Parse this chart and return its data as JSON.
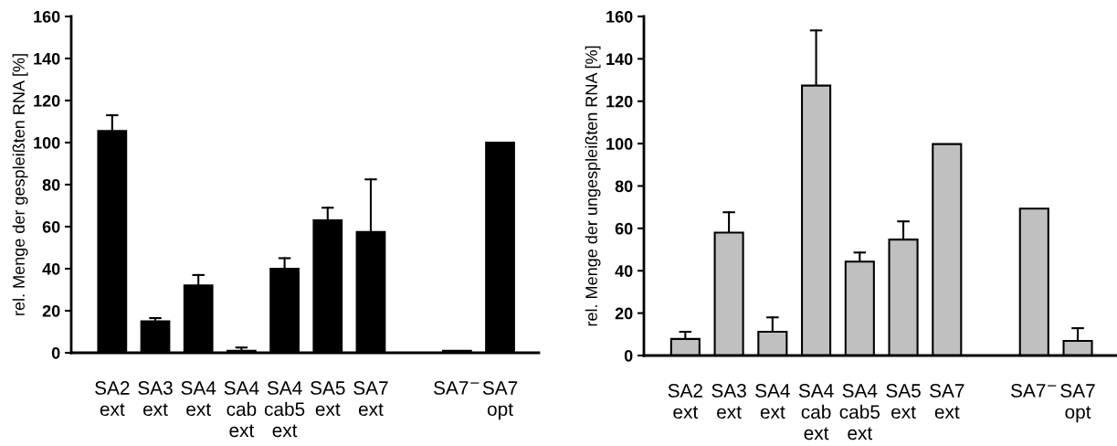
{
  "chart_data": [
    {
      "type": "bar",
      "ylabel": "rel. Menge der gespleißten RNA [%]",
      "categories": [
        "SA2\next",
        "SA3\next",
        "SA4\next",
        "SA4\ncab\next",
        "SA4\ncab5\next",
        "SA5\next",
        "SA7\next",
        null,
        "SA7$^{−}$",
        "SA7\nopt"
      ],
      "values": [
        105.5,
        15,
        32,
        1,
        40,
        63,
        57.5,
        null,
        1,
        100
      ],
      "errors": [
        [
          105.5,
          113
        ],
        [
          15,
          16.5
        ],
        [
          32,
          37
        ],
        [
          1,
          2.5
        ],
        [
          40,
          45
        ],
        [
          63,
          69
        ],
        [
          57.5,
          82.5
        ],
        null,
        null,
        null
      ],
      "color": "#000000",
      "ylim": [
        0,
        160
      ],
      "yticks": [
        0,
        20,
        40,
        60,
        80,
        100,
        120,
        140,
        160
      ],
      "grid": false
    },
    {
      "type": "bar",
      "ylabel": "rel. Menge der ungespleißten RNA [%]",
      "categories": [
        "SA2\next",
        "SA3\next",
        "SA4\next",
        "SA4\ncab\next",
        "SA4\ncab5\next",
        "SA5\next",
        "SA7\next",
        null,
        "SA7$^{−}$",
        "SA7\nopt"
      ],
      "values": [
        7.8,
        58,
        11.2,
        127.4,
        44.3,
        54.7,
        99.8,
        null,
        69.3,
        6.9
      ],
      "errors": [
        [
          7.8,
          11.2
        ],
        [
          58,
          67.6
        ],
        [
          11.2,
          18
        ],
        [
          127.4,
          153.4
        ],
        [
          44.3,
          48.6
        ],
        [
          54.7,
          63.3
        ],
        null,
        null,
        null,
        [
          6.9,
          12.9
        ]
      ],
      "color": "#c0c0c0",
      "ylim": [
        0,
        160
      ],
      "yticks": [
        0,
        20,
        40,
        60,
        80,
        100,
        120,
        140,
        160
      ],
      "grid": false
    }
  ]
}
